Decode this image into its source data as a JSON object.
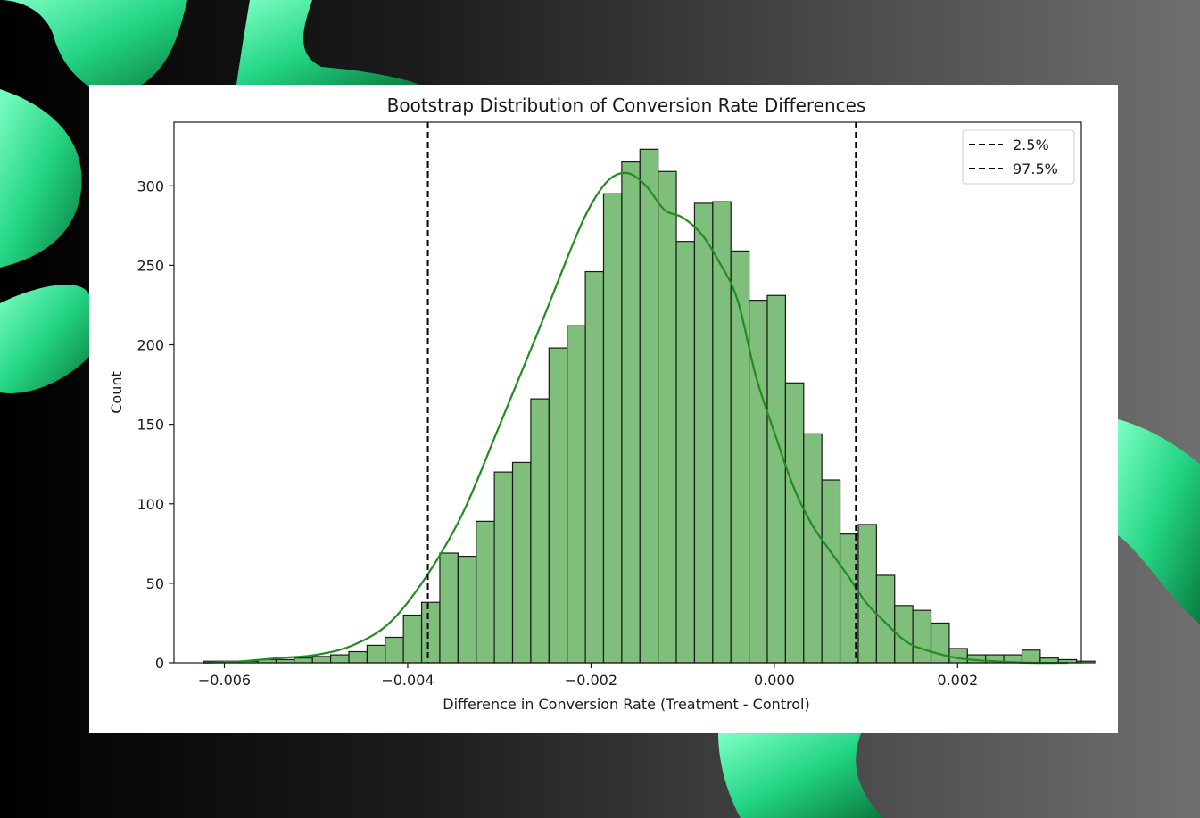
{
  "chart_data": {
    "type": "bar",
    "title": "Bootstrap Distribution of Conversion Rate Differences",
    "xlabel": "Difference in Conversion Rate (Treatment - Control)",
    "ylabel": "Count",
    "xlim": [
      -0.00655,
      0.00335
    ],
    "ylim": [
      0,
      340
    ],
    "xticks": [
      -0.006,
      -0.004,
      -0.002,
      0.0,
      0.002
    ],
    "xtick_labels": [
      "−0.006",
      "−0.004",
      "−0.002",
      "0.000",
      "0.002"
    ],
    "yticks": [
      0,
      50,
      100,
      150,
      200,
      250,
      300
    ],
    "ytick_labels": [
      "0",
      "50",
      "100",
      "150",
      "200",
      "250",
      "300"
    ],
    "bin_start": -0.00623,
    "bin_width": 0.0001985,
    "counts": [
      1,
      1,
      1,
      2,
      2,
      3,
      4,
      5,
      7,
      11,
      16,
      30,
      38,
      69,
      67,
      89,
      120,
      126,
      166,
      198,
      212,
      246,
      295,
      315,
      323,
      309,
      265,
      289,
      290,
      259,
      228,
      231,
      176,
      144,
      115,
      81,
      87,
      55,
      36,
      33,
      25,
      9,
      5,
      5,
      5,
      8,
      3,
      2,
      1
    ],
    "kde": {
      "x": [
        -0.00623,
        -0.0058,
        -0.0054,
        -0.005,
        -0.0046,
        -0.0042,
        -0.0038,
        -0.0034,
        -0.003,
        -0.0026,
        -0.0022,
        -0.002,
        -0.0018,
        -0.0016,
        -0.0014,
        -0.0012,
        -0.001,
        -0.0008,
        -0.0006,
        -0.0004,
        -0.0002,
        0.0,
        0.0002,
        0.0004,
        0.0006,
        0.0008,
        0.001,
        0.0012,
        0.0014,
        0.0016,
        0.002,
        0.0024,
        0.0028,
        0.0032
      ],
      "y": [
        0,
        1,
        3,
        5,
        11,
        25,
        54,
        94,
        149,
        205,
        263,
        288,
        304,
        308,
        300,
        285,
        280,
        270,
        252,
        228,
        180,
        145,
        112,
        88,
        71,
        55,
        38,
        26,
        15,
        9,
        3,
        1,
        0,
        0
      ]
    },
    "vlines": [
      {
        "label": "2.5%",
        "x": -0.00378
      },
      {
        "label": "97.5%",
        "x": 0.00089
      }
    ],
    "colors": {
      "bar_fill": "#7fbf7b",
      "bar_edge": "#1a1a1a",
      "kde": "#228B22",
      "vline": "#000000"
    },
    "legend_position": "top-right",
    "grid": false
  }
}
